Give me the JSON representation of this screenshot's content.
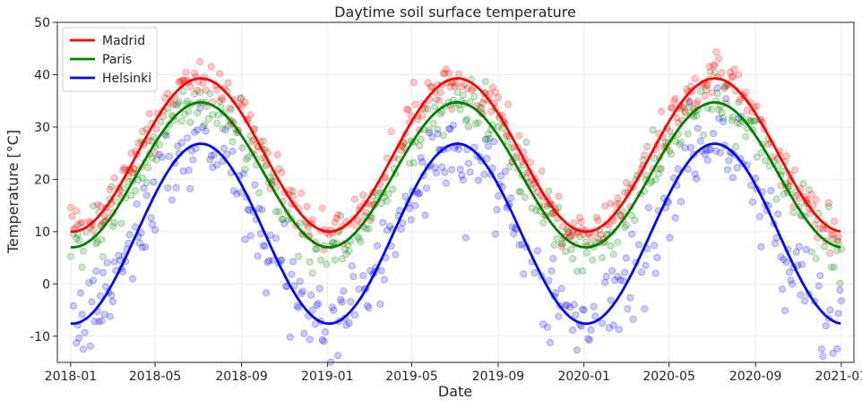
{
  "chart_data": {
    "type": "scatter",
    "title": "Daytime soil surface temperature",
    "xlabel": "Date",
    "ylabel": "Temperature [°C]",
    "xlim": [
      "2017-12-13",
      "2021-01-19"
    ],
    "ylim": [
      -15,
      50
    ],
    "grid": true,
    "legend_position": "upper-left",
    "x_ticks": [
      "2018-01",
      "2018-05",
      "2018-09",
      "2019-01",
      "2019-05",
      "2019-09",
      "2020-01",
      "2020-05",
      "2020-09",
      "2021-01"
    ],
    "y_ticks": [
      -10,
      0,
      10,
      20,
      30,
      40,
      50
    ],
    "fit_peak_date": "07-05",
    "series": [
      {
        "name": "Madrid",
        "color": "#ff0000",
        "fit_min": 10.0,
        "fit_max": 39.3,
        "noise": 2.2
      },
      {
        "name": "Paris",
        "color": "#008000",
        "fit_min": 7.0,
        "fit_max": 34.7,
        "noise": 2.6
      },
      {
        "name": "Helsinki",
        "color": "#0000ff",
        "fit_min": -7.6,
        "fit_max": 26.8,
        "noise": 4.2
      }
    ]
  }
}
